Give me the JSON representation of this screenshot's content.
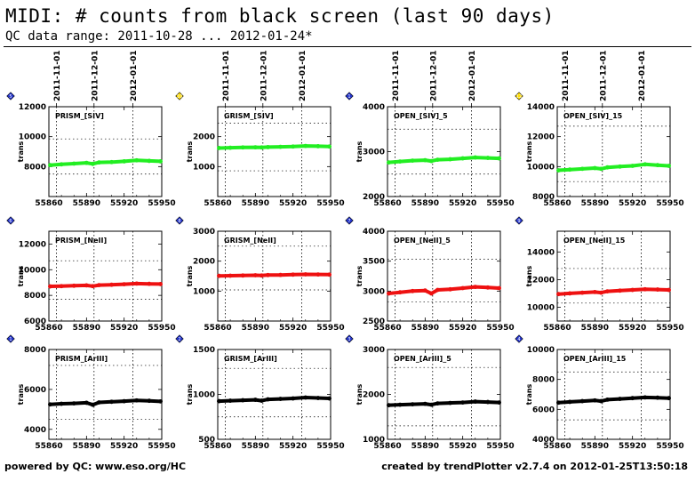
{
  "header": {
    "title": "MIDI: # counts from black screen (last 90 days)",
    "subtitle": "QC data range: 2011-10-28 ... 2012-01-24*"
  },
  "footer": {
    "left": "powered by QC: www.eso.org/HC",
    "right": "created by trendPlotter v2.7.4 on 2012-01-25T13:50:18"
  },
  "date_ticks": [
    {
      "label": "2011-11-01",
      "x": 55866
    },
    {
      "label": "2011-12-01",
      "x": 55896
    },
    {
      "label": "2012-01-01",
      "x": 55927
    }
  ],
  "colors": {
    "green": "#22ee22",
    "red": "#ee1111",
    "black": "#000000",
    "marker_blue": "#2233cc",
    "marker_yellow": "#ffdd00"
  },
  "chart_data": [
    {
      "type": "scatter",
      "title": "PRISM_[SIV]",
      "ylabel": "trans",
      "xlim": [
        55860,
        55950
      ],
      "ylim": [
        6000,
        12000
      ],
      "yticks": [
        8000,
        10000,
        12000
      ],
      "xticks": [
        55860,
        55890,
        55920,
        55950
      ],
      "ref_lines": [
        9850,
        7500
      ],
      "series": [
        {
          "name": "PRISM_[SIV]",
          "color": "green",
          "x": [
            55861,
            55870,
            55880,
            55890,
            55895,
            55900,
            55910,
            55920,
            55930,
            55940,
            55949
          ],
          "y": [
            8100,
            8150,
            8200,
            8250,
            8180,
            8280,
            8300,
            8350,
            8420,
            8380,
            8350
          ]
        }
      ],
      "panel_number": "5"
    },
    {
      "type": "scatter",
      "title": "GRISM_[SIV]",
      "ylabel": "trans",
      "xlim": [
        55860,
        55950
      ],
      "ylim": [
        0,
        3000
      ],
      "yticks": [
        1000,
        2000
      ],
      "xticks": [
        55860,
        55890,
        55920,
        55950
      ],
      "ref_lines": [
        2450,
        860
      ],
      "series": [
        {
          "name": "GRISM_[SIV]",
          "color": "green",
          "x": [
            55861,
            55870,
            55880,
            55890,
            55895,
            55900,
            55910,
            55920,
            55930,
            55940,
            55949
          ],
          "y": [
            1620,
            1630,
            1640,
            1645,
            1640,
            1650,
            1660,
            1670,
            1690,
            1680,
            1670
          ]
        }
      ],
      "panel_number": "10"
    },
    {
      "type": "scatter",
      "title": "OPEN_[SIV]_5",
      "ylabel": "trans",
      "xlim": [
        55860,
        55950
      ],
      "ylim": [
        2000,
        4000
      ],
      "yticks": [
        2000,
        3000,
        4000
      ],
      "xticks": [
        55860,
        55890,
        55920,
        55950
      ],
      "ref_lines": [
        3500,
        2500
      ],
      "series": [
        {
          "name": "OPEN_[SIV]_5",
          "color": "green",
          "x": [
            55861,
            55870,
            55880,
            55890,
            55895,
            55900,
            55910,
            55920,
            55930,
            55940,
            55949
          ],
          "y": [
            2760,
            2780,
            2800,
            2810,
            2790,
            2820,
            2830,
            2850,
            2870,
            2860,
            2850
          ]
        }
      ],
      "panel_number": "1"
    },
    {
      "type": "scatter",
      "title": "OPEN_[SIV]_15",
      "ylabel": "trans",
      "xlim": [
        55860,
        55950
      ],
      "ylim": [
        8000,
        14000
      ],
      "yticks": [
        8000,
        10000,
        12000,
        14000
      ],
      "xticks": [
        55860,
        55890,
        55920,
        55950
      ],
      "ref_lines": [
        12700,
        9000
      ],
      "series": [
        {
          "name": "OPEN_[SIV]_15",
          "color": "green",
          "x": [
            55861,
            55870,
            55880,
            55890,
            55895,
            55900,
            55910,
            55920,
            55930,
            55940,
            55949
          ],
          "y": [
            9750,
            9800,
            9850,
            9900,
            9850,
            9950,
            10000,
            10050,
            10150,
            10100,
            10050
          ]
        }
      ],
      "panel_number": "12"
    },
    {
      "type": "scatter",
      "title": "PRISM_[NeII]",
      "ylabel": "trans",
      "xlim": [
        55860,
        55950
      ],
      "ylim": [
        6000,
        13000
      ],
      "yticks": [
        6000,
        8000,
        10000,
        12000
      ],
      "xticks": [
        55860,
        55890,
        55920,
        55950
      ],
      "ref_lines": [
        10700,
        7700
      ],
      "series": [
        {
          "name": "PRISM_[NeII]",
          "color": "red",
          "x": [
            55861,
            55870,
            55880,
            55890,
            55895,
            55900,
            55910,
            55920,
            55930,
            55940,
            55949
          ],
          "y": [
            8700,
            8720,
            8750,
            8780,
            8720,
            8800,
            8830,
            8870,
            8920,
            8900,
            8880
          ]
        }
      ],
      "panel_number": "6"
    },
    {
      "type": "scatter",
      "title": "GRISM_[NeII]",
      "ylabel": "trans",
      "xlim": [
        55860,
        55950
      ],
      "ylim": [
        0,
        3000
      ],
      "yticks": [
        1000,
        2000,
        3000
      ],
      "xticks": [
        55860,
        55890,
        55920,
        55950
      ],
      "ref_lines": [
        2500,
        1040
      ],
      "series": [
        {
          "name": "GRISM_[NeII]",
          "color": "red",
          "x": [
            55861,
            55870,
            55880,
            55890,
            55895,
            55900,
            55910,
            55920,
            55930,
            55940,
            55949
          ],
          "y": [
            1510,
            1515,
            1520,
            1530,
            1520,
            1535,
            1540,
            1550,
            1560,
            1555,
            1550
          ]
        }
      ],
      "panel_number": "8"
    },
    {
      "type": "scatter",
      "title": "OPEN_[NeII]_5",
      "ylabel": "trans",
      "xlim": [
        55860,
        55950
      ],
      "ylim": [
        2500,
        4000
      ],
      "yticks": [
        2500,
        3000,
        3500,
        4000
      ],
      "xticks": [
        55860,
        55890,
        55920,
        55950
      ],
      "ref_lines": [
        3530,
        2820
      ],
      "series": [
        {
          "name": "OPEN_[NeII]_5",
          "color": "red",
          "x": [
            55861,
            55870,
            55880,
            55890,
            55895,
            55900,
            55910,
            55920,
            55930,
            55940,
            55949
          ],
          "y": [
            2960,
            2980,
            3000,
            3010,
            2960,
            3020,
            3030,
            3050,
            3070,
            3060,
            3050
          ]
        }
      ],
      "panel_number": "7"
    },
    {
      "type": "scatter",
      "title": "OPEN_[NeII]_15",
      "ylabel": "trans",
      "xlim": [
        55860,
        55950
      ],
      "ylim": [
        9000,
        15500
      ],
      "yticks": [
        10000,
        12000,
        14000
      ],
      "xticks": [
        55860,
        55890,
        55920,
        55950
      ],
      "ref_lines": [
        12800,
        10300
      ],
      "series": [
        {
          "name": "OPEN_[NeII]_15",
          "color": "red",
          "x": [
            55861,
            55870,
            55880,
            55890,
            55895,
            55900,
            55910,
            55920,
            55930,
            55940,
            55949
          ],
          "y": [
            10950,
            11000,
            11050,
            11100,
            11050,
            11150,
            11200,
            11250,
            11300,
            11280,
            11250
          ]
        }
      ],
      "panel_number": "9"
    },
    {
      "type": "scatter",
      "title": "PRISM_[ArIII]",
      "ylabel": "trans",
      "xlim": [
        55860,
        55950
      ],
      "ylim": [
        3500,
        8000
      ],
      "yticks": [
        4000,
        6000,
        8000
      ],
      "xticks": [
        55860,
        55890,
        55920,
        55950
      ],
      "ref_lines": [
        7200,
        4500
      ],
      "series": [
        {
          "name": "PRISM_[ArIII]",
          "color": "black",
          "x": [
            55861,
            55870,
            55880,
            55890,
            55895,
            55900,
            55910,
            55920,
            55930,
            55940,
            55949
          ],
          "y": [
            5250,
            5280,
            5300,
            5330,
            5230,
            5350,
            5380,
            5410,
            5450,
            5430,
            5400
          ]
        }
      ],
      "panel_number": "1"
    },
    {
      "type": "scatter",
      "title": "GRISM_[ArIII]",
      "ylabel": "trans",
      "xlim": [
        55860,
        55950
      ],
      "ylim": [
        500,
        1500
      ],
      "yticks": [
        500,
        1000,
        1500
      ],
      "xticks": [
        55860,
        55890,
        55920,
        55950
      ],
      "ref_lines": [
        1290,
        750
      ],
      "series": [
        {
          "name": "GRISM_[ArIII]",
          "color": "black",
          "x": [
            55861,
            55870,
            55880,
            55890,
            55895,
            55900,
            55910,
            55920,
            55930,
            55940,
            55949
          ],
          "y": [
            925,
            930,
            935,
            940,
            930,
            945,
            950,
            955,
            965,
            960,
            955
          ]
        }
      ],
      "panel_number": "2"
    },
    {
      "type": "scatter",
      "title": "OPEN_[ArIII]_5",
      "ylabel": "trans",
      "xlim": [
        55860,
        55950
      ],
      "ylim": [
        1000,
        3000
      ],
      "yticks": [
        1000,
        2000,
        3000
      ],
      "xticks": [
        55860,
        55890,
        55920,
        55950
      ],
      "ref_lines": [
        2600,
        1300
      ],
      "series": [
        {
          "name": "OPEN_[ArIII]_5",
          "color": "black",
          "x": [
            55861,
            55870,
            55880,
            55890,
            55895,
            55900,
            55910,
            55920,
            55930,
            55940,
            55949
          ],
          "y": [
            1760,
            1770,
            1780,
            1790,
            1770,
            1800,
            1810,
            1820,
            1840,
            1830,
            1820
          ]
        }
      ],
      "panel_number": "3"
    },
    {
      "type": "scatter",
      "title": "OPEN_[ArIII]_15",
      "ylabel": "trans",
      "xlim": [
        55860,
        55950
      ],
      "ylim": [
        4000,
        10000
      ],
      "yticks": [
        4000,
        6000,
        8000,
        10000
      ],
      "xticks": [
        55860,
        55890,
        55920,
        55950
      ],
      "ref_lines": [
        8500,
        5300
      ],
      "series": [
        {
          "name": "OPEN_[ArIII]_15",
          "color": "black",
          "x": [
            55861,
            55870,
            55880,
            55890,
            55895,
            55900,
            55910,
            55920,
            55930,
            55940,
            55949
          ],
          "y": [
            6450,
            6500,
            6550,
            6600,
            6550,
            6650,
            6700,
            6750,
            6800,
            6780,
            6750
          ]
        }
      ],
      "panel_number": "4"
    }
  ]
}
